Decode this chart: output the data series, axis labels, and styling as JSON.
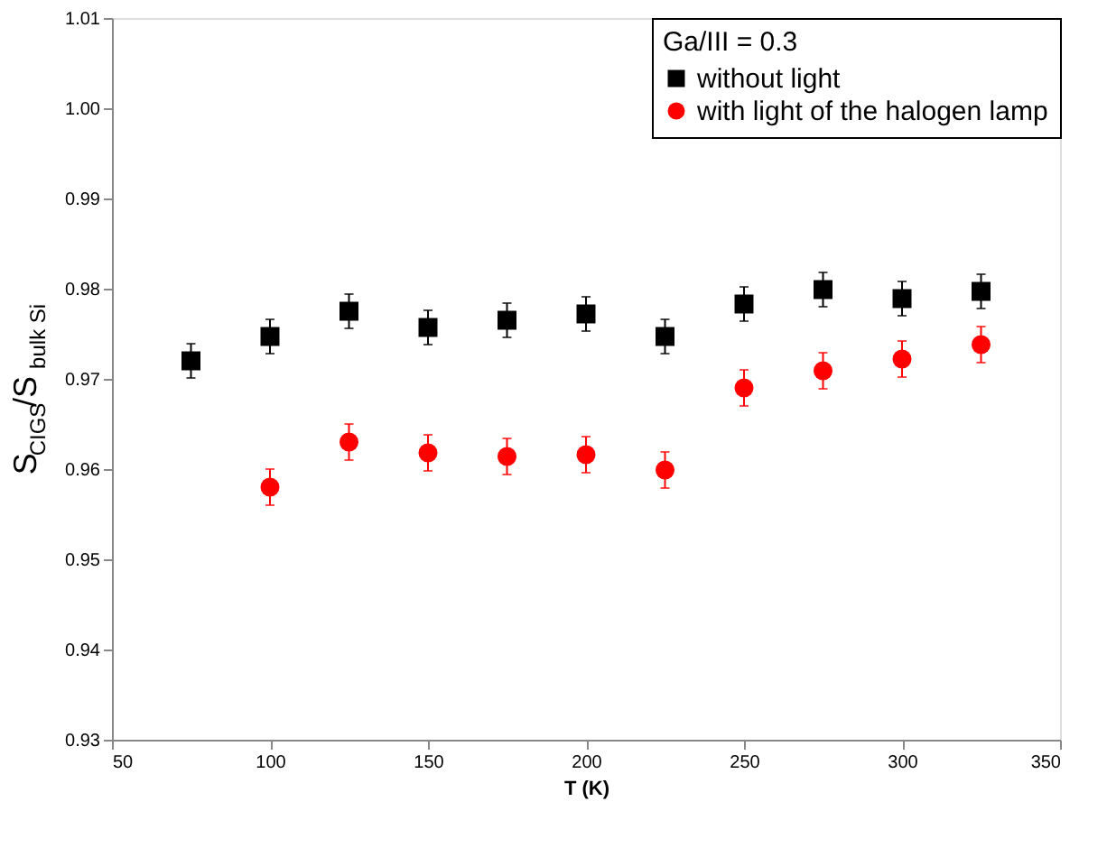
{
  "chart_data": {
    "type": "scatter",
    "xlabel": "T (K)",
    "ylabel": "S$_{CIGS}$/S$_{bulk Si}$",
    "legend_title": "Ga/III = 0.3",
    "x": [
      75,
      100,
      125,
      150,
      175,
      200,
      225,
      250,
      275,
      300,
      325
    ],
    "series": [
      {
        "name": "without light",
        "color": "#000000",
        "marker": "square",
        "values": [
          0.972,
          0.9747,
          0.9775,
          0.9757,
          0.9765,
          0.9772,
          0.9747,
          0.9783,
          0.9799,
          0.9789,
          0.9797
        ],
        "errors": [
          0.0019,
          0.0019,
          0.0019,
          0.0019,
          0.0019,
          0.0019,
          0.0019,
          0.0019,
          0.0019,
          0.0019,
          0.0019
        ]
      },
      {
        "name": "with light of the halogen lamp",
        "color": "#ff0000",
        "marker": "circle",
        "values": [
          null,
          0.958,
          0.963,
          0.9618,
          0.9614,
          0.9616,
          0.9599,
          0.969,
          0.9709,
          0.9722,
          0.9738
        ],
        "errors": [
          null,
          0.002,
          0.002,
          0.002,
          0.002,
          0.002,
          0.002,
          0.002,
          0.002,
          0.002,
          0.002
        ]
      }
    ],
    "xlim": [
      50,
      350
    ],
    "xticks": [
      50,
      100,
      150,
      200,
      250,
      300,
      350
    ],
    "ylim": [
      0.93,
      1.01
    ],
    "yticks": [
      0.93,
      0.94,
      0.95,
      0.96,
      0.97,
      0.98,
      0.99,
      {
        "value": 1.0,
        "label": "1.00"
      },
      1.01
    ],
    "grid": false,
    "legend": "top right"
  }
}
